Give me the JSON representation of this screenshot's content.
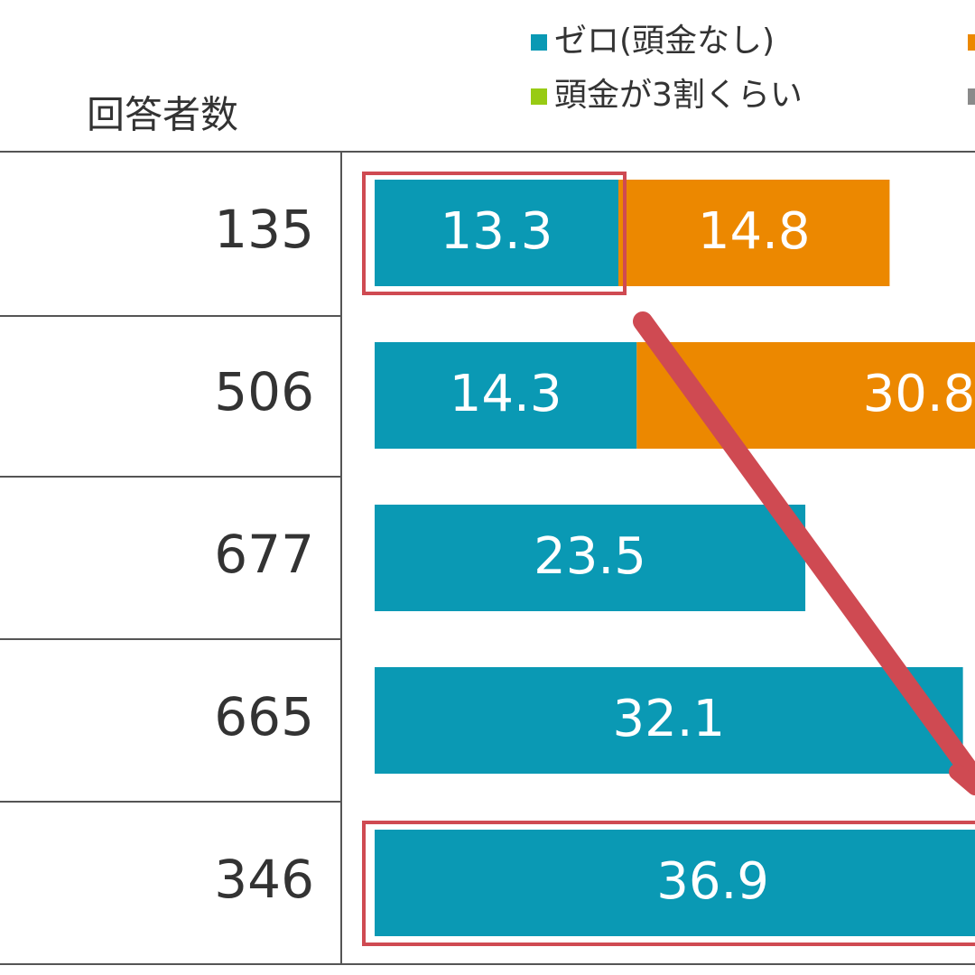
{
  "chart_data": {
    "type": "stacked-bar",
    "category_header": "回答者数",
    "categories": [
      135,
      506,
      677,
      665,
      346
    ],
    "series": [
      {
        "name": "ゼロ(頭金なし)",
        "color": "#0a99b4",
        "values": [
          13.3,
          14.3,
          23.5,
          32.1,
          36.9
        ]
      },
      {
        "color": "#ec8800",
        "values": [
          14.8,
          30.8,
          null,
          null,
          null
        ]
      },
      {
        "name": "頭金が3割くらい",
        "color": "#98cb14",
        "values": [
          null,
          null,
          null,
          null,
          null
        ]
      },
      {
        "color": "#8a8a8a",
        "values": [
          null,
          null,
          null,
          null,
          null
        ]
      }
    ]
  }
}
